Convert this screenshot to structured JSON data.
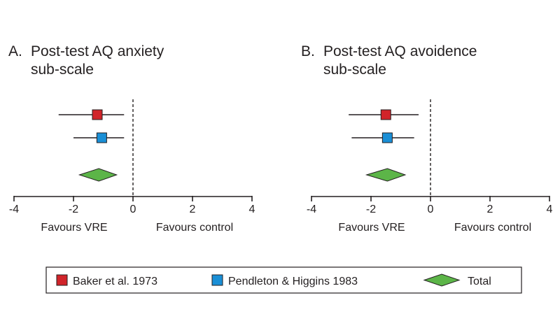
{
  "chart_data": [
    {
      "type": "forest",
      "panel_letter": "A.",
      "title_lines": [
        "Post-test AQ anxiety",
        "sub-scale"
      ],
      "xlim": [
        -4,
        4
      ],
      "xticks": [
        -4,
        -2,
        0,
        2,
        4
      ],
      "xtick_labels": [
        "-4",
        "-2",
        "0",
        "2",
        "4"
      ],
      "reference_line": 0,
      "left_label": "Favours VRE",
      "right_label": "Favours control",
      "studies": [
        {
          "name": "Baker et al. 1973",
          "estimate": -1.2,
          "ci": [
            -2.5,
            -0.3
          ],
          "color": "#d1242a"
        },
        {
          "name": "Pendleton & Higgins 1983",
          "estimate": -1.05,
          "ci": [
            -2.0,
            -0.3
          ],
          "color": "#1a8fd6"
        }
      ],
      "total": {
        "name": "Total",
        "estimate": -1.15,
        "ci": [
          -1.8,
          -0.55
        ],
        "color": "#5cb548"
      }
    },
    {
      "type": "forest",
      "panel_letter": "B.",
      "title_lines": [
        "Post-test AQ avoidence",
        "sub-scale"
      ],
      "xlim": [
        -4,
        4
      ],
      "xticks": [
        -4,
        -2,
        0,
        2,
        4
      ],
      "xtick_labels": [
        "-4",
        "-2",
        "0",
        "2",
        "4"
      ],
      "reference_line": 0,
      "left_label": "Favours VRE",
      "right_label": "Favours control",
      "studies": [
        {
          "name": "Baker et al. 1973",
          "estimate": -1.5,
          "ci": [
            -2.75,
            -0.4
          ],
          "color": "#d1242a"
        },
        {
          "name": "Pendleton & Higgins 1983",
          "estimate": -1.45,
          "ci": [
            -2.65,
            -0.55
          ],
          "color": "#1a8fd6"
        }
      ],
      "total": {
        "name": "Total",
        "estimate": -1.45,
        "ci": [
          -2.15,
          -0.85
        ],
        "color": "#5cb548"
      }
    }
  ],
  "legend": {
    "items": [
      {
        "label": "Baker et al. 1973",
        "shape": "square",
        "color": "#d1242a"
      },
      {
        "label": "Pendleton & Higgins 1983",
        "shape": "square",
        "color": "#1a8fd6"
      },
      {
        "label": "Total",
        "shape": "diamond",
        "color": "#5cb548"
      }
    ]
  }
}
